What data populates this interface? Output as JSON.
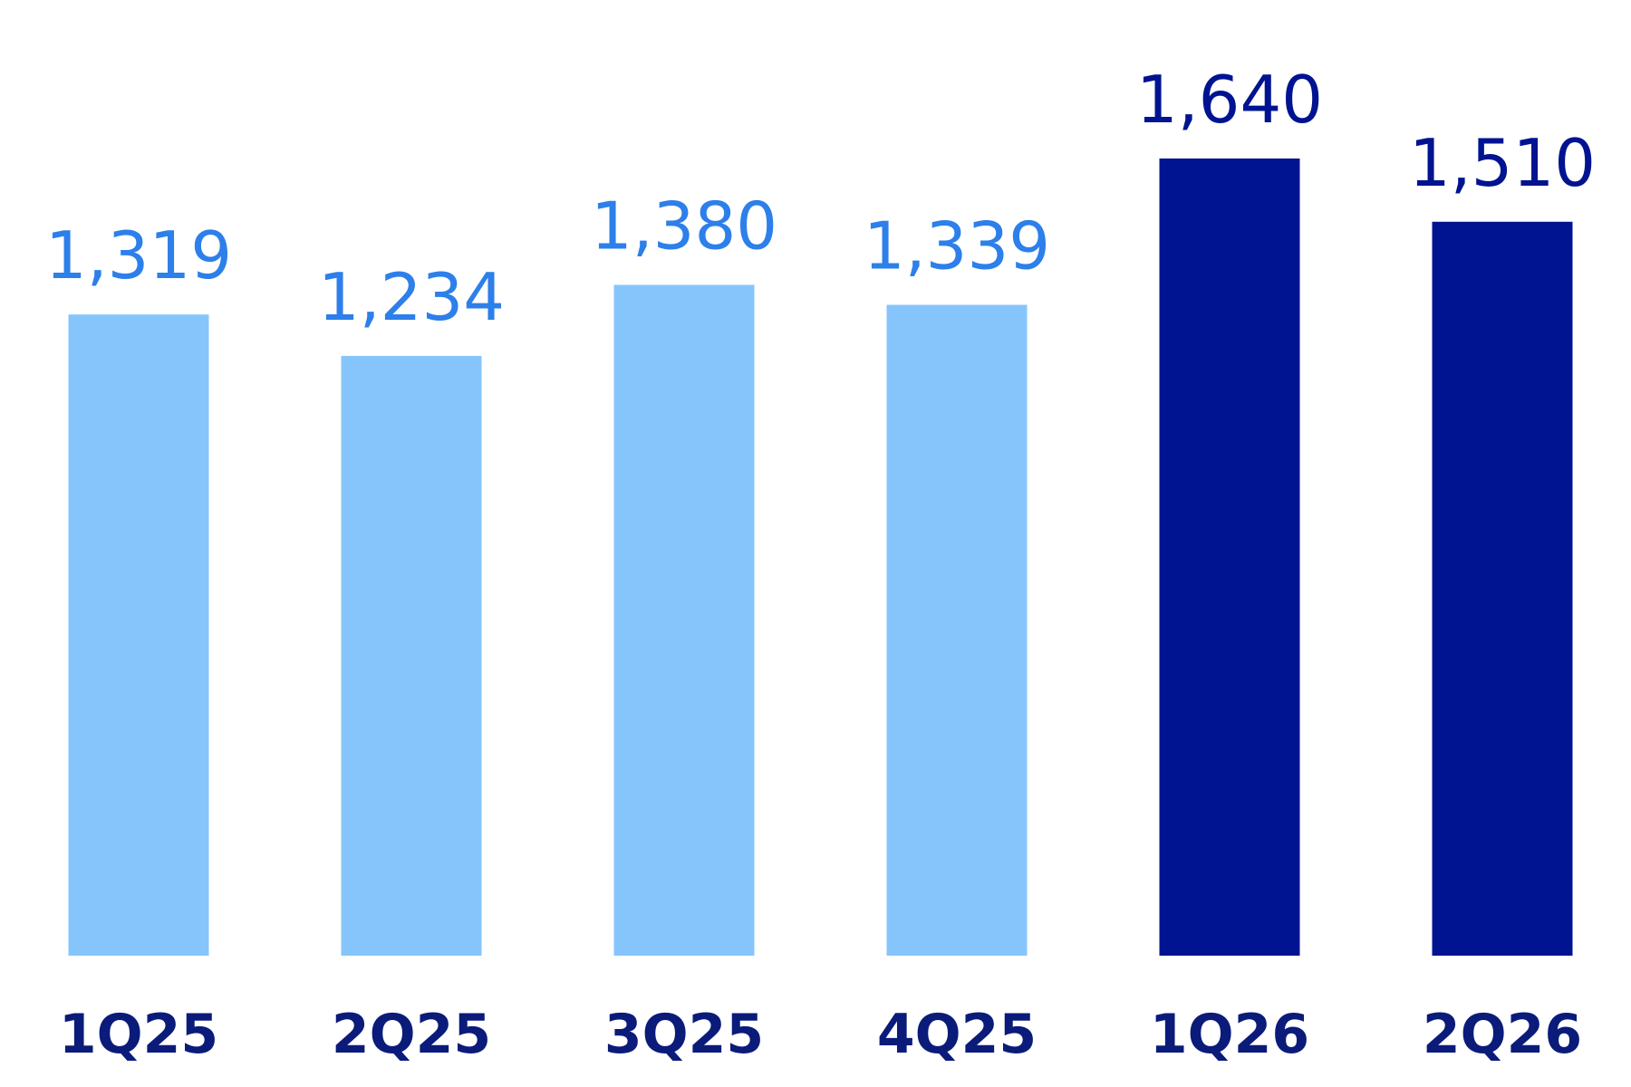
{
  "chart_data": {
    "type": "bar",
    "categories": [
      "1Q25",
      "2Q25",
      "3Q25",
      "4Q25",
      "1Q26",
      "2Q26"
    ],
    "values": [
      1319,
      1234,
      1380,
      1339,
      1640,
      1510
    ],
    "value_labels": [
      "1,319",
      "1,234",
      "1,380",
      "1,339",
      "1,640",
      "1,510"
    ],
    "title": "",
    "xlabel": "",
    "ylabel": "",
    "ylim": [
      0,
      1640
    ],
    "grid": false,
    "legend": "none",
    "bar_colors": [
      "#86C5FC",
      "#86C5FC",
      "#86C5FC",
      "#86C5FC",
      "#001391",
      "#001391"
    ],
    "value_label_colors": [
      "#2D7FEA",
      "#2D7FEA",
      "#2D7FEA",
      "#2D7FEA",
      "#001391",
      "#001391"
    ],
    "category_label_color": "#0A1B7A"
  }
}
